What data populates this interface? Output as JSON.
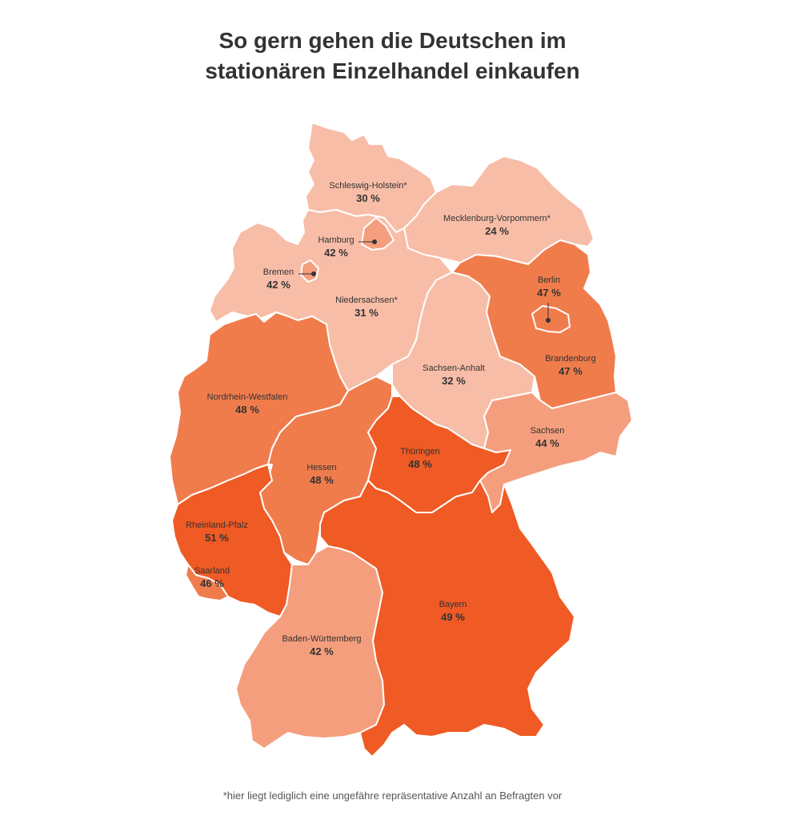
{
  "title": {
    "line1": "So gern gehen die Deutschen im",
    "line2": "stationären Einzelhandel einkaufen"
  },
  "footnote": "*hier liegt lediglich eine ungefähre repräsentative Anzahl an Befragten vor",
  "colors": {
    "lightest": "#f8bda7",
    "light": "#f59e7d",
    "medium": "#f07c4c",
    "dark": "#f05a24"
  },
  "states": [
    {
      "id": "schleswig-holstein",
      "name": "Schleswig-Holstein*",
      "value": "30 %",
      "shade": "lightest"
    },
    {
      "id": "mecklenburg-vorpommern",
      "name": "Mecklenburg-Vorpommern*",
      "value": "24 %",
      "shade": "lightest"
    },
    {
      "id": "hamburg",
      "name": "Hamburg",
      "value": "42 %",
      "shade": "light"
    },
    {
      "id": "bremen",
      "name": "Bremen",
      "value": "42 %",
      "shade": "light"
    },
    {
      "id": "niedersachsen",
      "name": "Niedersachsen*",
      "value": "31 %",
      "shade": "lightest"
    },
    {
      "id": "berlin",
      "name": "Berlin",
      "value": "47 %",
      "shade": "medium"
    },
    {
      "id": "brandenburg",
      "name": "Brandenburg",
      "value": "47 %",
      "shade": "medium"
    },
    {
      "id": "sachsen-anhalt",
      "name": "Sachsen-Anhalt",
      "value": "32 %",
      "shade": "lightest"
    },
    {
      "id": "nordrhein-westfalen",
      "name": "Nordrhein-Westfalen",
      "value": "48 %",
      "shade": "medium"
    },
    {
      "id": "sachsen",
      "name": "Sachsen",
      "value": "44 %",
      "shade": "light"
    },
    {
      "id": "thueringen",
      "name": "Thüringen",
      "value": "48 %",
      "shade": "dark"
    },
    {
      "id": "hessen",
      "name": "Hessen",
      "value": "48 %",
      "shade": "medium"
    },
    {
      "id": "rheinland-pfalz",
      "name": "Rheinland-Pfalz",
      "value": "51 %",
      "shade": "dark"
    },
    {
      "id": "saarland",
      "name": "Saarland",
      "value": "46 %",
      "shade": "medium"
    },
    {
      "id": "bayern",
      "name": "Bayern",
      "value": "49 %",
      "shade": "dark"
    },
    {
      "id": "baden-wuerttemberg",
      "name": "Baden-Württemberg",
      "value": "42 %",
      "shade": "light"
    }
  ]
}
